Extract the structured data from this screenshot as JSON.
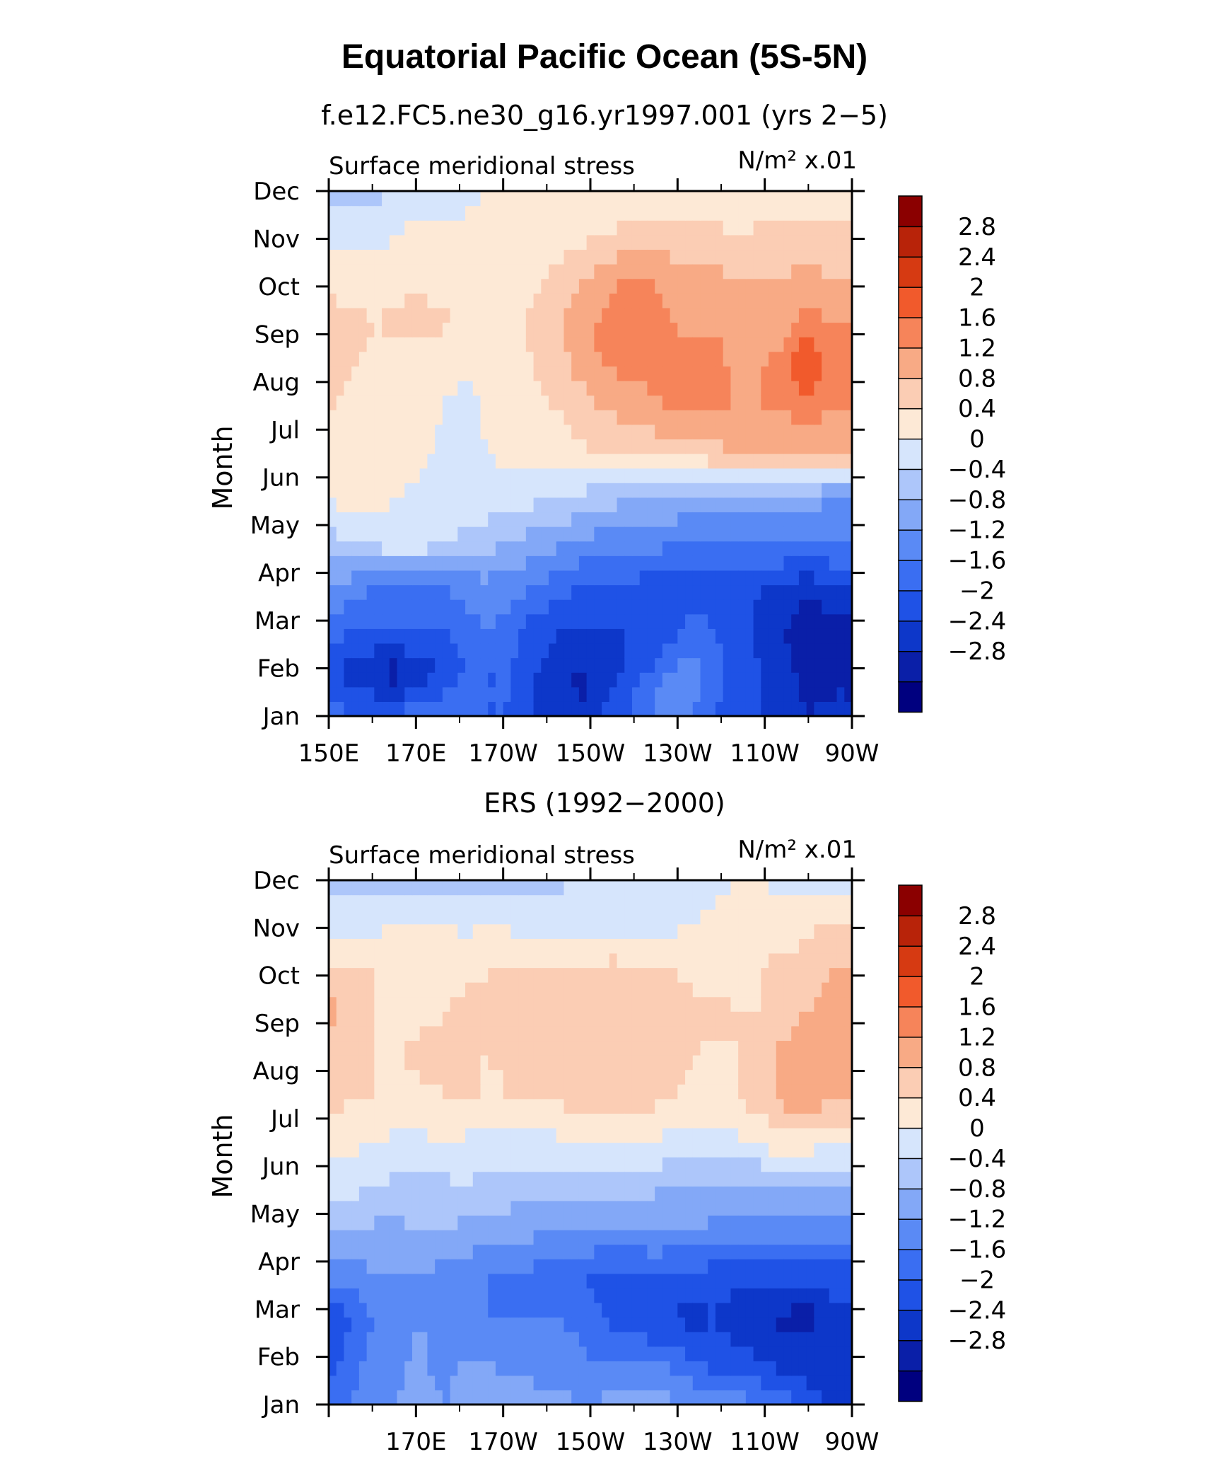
{
  "page": {
    "main_title": "Equatorial Pacific Ocean (5S-5N)"
  },
  "colors": {
    "axis": "#000000",
    "scale": [
      "#00007f",
      "#0a1fa8",
      "#0d37c9",
      "#1f52e6",
      "#3a6ef2",
      "#5a8af5",
      "#83a8f7",
      "#adc6fa",
      "#d6e5fc",
      "#fde9d6",
      "#fbcdb4",
      "#f8aa85",
      "#f6845a",
      "#f15a2c",
      "#d63a12",
      "#b82309",
      "#8b0000"
    ]
  },
  "chart_data": [
    {
      "type": "heatmap",
      "subtitle": "f.e12.FC5.ne30_g16.yr1997.001 (yrs 2−5)",
      "variable_label": "Surface meridional stress",
      "units_label": "N/m² x.01",
      "ylabel": "Month",
      "xlabel": "",
      "x_tick_labels": [
        "150E",
        "170E",
        "170W",
        "150W",
        "130W",
        "110W",
        "90W"
      ],
      "x_ticks_deg": [
        150,
        170,
        190,
        210,
        230,
        250,
        270
      ],
      "x_range_deg": [
        150,
        270
      ],
      "y_tick_labels": [
        "Jan",
        "Feb",
        "Mar",
        "Apr",
        "May",
        "Jun",
        "Jul",
        "Aug",
        "Sep",
        "Oct",
        "Nov",
        "Dec"
      ],
      "colorbar_labels": [
        "2.8",
        "2.4",
        "2",
        "1.6",
        "1.2",
        "0.8",
        "0.4",
        "0",
        "−0.4",
        "−0.8",
        "−1.2",
        "−1.6",
        "−2",
        "−2.4",
        "−2.8"
      ],
      "levels": [
        -2.8,
        -2.4,
        -2.0,
        -1.6,
        -1.2,
        -0.8,
        -0.4,
        0,
        0.4,
        0.8,
        1.2,
        1.6,
        2.0,
        2.4,
        2.8
      ],
      "grid": false,
      "legend_position": "right",
      "values": [
        [
          -1.2,
          -1.6,
          -1.6,
          -1.6,
          -1.2,
          -1.2,
          -1.2,
          -1.6,
          -1.6,
          -2.0,
          -2.0,
          -2.4,
          -2.0,
          -1.6,
          -1.2,
          -0.8,
          -1.2,
          -1.6,
          -2.0,
          -2.0,
          -2.0,
          -2.4,
          -2.2
        ],
        [
          -2.0,
          -2.2,
          -2.4,
          -2.6,
          -2.2,
          -2.0,
          -1.6,
          -1.6,
          -1.6,
          -2.0,
          -2.2,
          -2.5,
          -2.3,
          -2.0,
          -1.6,
          -1.2,
          -1.0,
          -1.4,
          -1.8,
          -2.0,
          -2.2,
          -2.6,
          -2.6
        ],
        [
          -1.4,
          -1.6,
          -1.6,
          -1.6,
          -1.6,
          -1.6,
          -1.4,
          -1.2,
          -1.4,
          -1.8,
          -2.0,
          -2.0,
          -2.0,
          -2.0,
          -2.0,
          -1.8,
          -1.4,
          -1.6,
          -1.8,
          -2.2,
          -2.4,
          -2.8,
          -2.6
        ],
        [
          -0.8,
          -1.0,
          -1.2,
          -1.2,
          -1.2,
          -1.2,
          -1.0,
          -0.9,
          -1.0,
          -1.2,
          -1.4,
          -1.6,
          -1.6,
          -1.6,
          -1.8,
          -1.8,
          -1.8,
          -1.8,
          -1.8,
          -2.0,
          -2.0,
          -2.2,
          -2.0
        ],
        [
          -0.2,
          0.2,
          0.2,
          0.3,
          0.3,
          0.1,
          -0.1,
          -0.2,
          -0.4,
          -0.6,
          -0.7,
          -0.8,
          -1.0,
          -1.0,
          -1.0,
          -1.1,
          -1.2,
          -1.2,
          -1.2,
          -1.2,
          -1.2,
          -1.2,
          -1.2
        ],
        [
          0.4,
          0.6,
          0.5,
          0.4,
          0.3,
          0.3,
          0.3,
          0.2,
          0.2,
          0.1,
          0.0,
          -0.1,
          -0.2,
          -0.3,
          -0.4,
          -0.4,
          -0.6,
          -0.6,
          -0.6,
          -0.6,
          -0.6,
          -0.6,
          -0.8
        ],
        [
          0.6,
          0.6,
          0.6,
          0.6,
          0.5,
          0.3,
          0.3,
          0.4,
          0.5,
          0.5,
          0.6,
          0.7,
          0.8,
          0.9,
          0.9,
          0.9,
          1.0,
          1.1,
          1.2,
          1.3,
          1.3,
          1.3,
          1.2
        ],
        [
          0.8,
          0.6,
          0.6,
          0.6,
          0.6,
          0.4,
          0.2,
          0.5,
          0.6,
          0.6,
          0.8,
          1.0,
          1.2,
          1.3,
          1.4,
          1.6,
          1.6,
          1.6,
          1.6,
          1.6,
          1.6,
          1.8,
          1.6
        ],
        [
          1.0,
          0.8,
          0.7,
          0.6,
          0.6,
          0.5,
          0.5,
          0.6,
          0.7,
          0.8,
          1.0,
          1.3,
          1.6,
          1.7,
          1.8,
          1.8,
          1.8,
          1.8,
          1.4,
          1.6,
          1.8,
          2.4,
          2.0
        ],
        [
          1.0,
          0.9,
          0.8,
          0.9,
          1.0,
          0.9,
          0.6,
          0.6,
          0.7,
          0.9,
          1.1,
          1.4,
          1.7,
          1.8,
          1.8,
          1.6,
          1.4,
          1.5,
          1.3,
          1.2,
          1.4,
          1.8,
          1.6
        ],
        [
          0.7,
          0.6,
          0.6,
          0.6,
          0.7,
          0.6,
          0.5,
          0.6,
          0.6,
          0.7,
          0.9,
          1.1,
          1.4,
          1.6,
          1.6,
          1.5,
          1.4,
          1.3,
          1.2,
          1.2,
          1.2,
          1.4,
          1.2
        ],
        [
          0.3,
          0.3,
          0.3,
          0.4,
          0.5,
          0.5,
          0.5,
          0.5,
          0.4,
          0.5,
          0.6,
          0.7,
          0.8,
          0.9,
          0.9,
          0.9,
          0.9,
          0.9,
          0.8,
          0.9,
          0.9,
          1.0,
          0.9
        ],
        [
          -0.1,
          -0.2,
          -0.1,
          0.1,
          0.2,
          0.2,
          0.3,
          0.4,
          0.4,
          0.4,
          0.4,
          0.5,
          0.5,
          0.5,
          0.5,
          0.5,
          0.5,
          0.5,
          0.5,
          0.5,
          0.5,
          0.6,
          0.6
        ]
      ]
    },
    {
      "type": "heatmap",
      "subtitle": "ERS (1992−2000)",
      "variable_label": "Surface meridional stress",
      "units_label": "N/m² x.01",
      "ylabel": "Month",
      "xlabel": "",
      "x_tick_labels": [
        "170E",
        "170W",
        "150W",
        "130W",
        "110W",
        "90W"
      ],
      "x_ticks_deg": [
        170,
        190,
        210,
        230,
        250,
        270
      ],
      "x_range_deg": [
        150,
        270
      ],
      "y_tick_labels": [
        "Jan",
        "Feb",
        "Mar",
        "Apr",
        "May",
        "Jun",
        "Jul",
        "Aug",
        "Sep",
        "Oct",
        "Nov",
        "Dec"
      ],
      "colorbar_labels": [
        "2.8",
        "2.4",
        "2",
        "1.6",
        "1.2",
        "0.8",
        "0.4",
        "0",
        "−0.4",
        "−0.8",
        "−1.2",
        "−1.6",
        "−2",
        "−2.4",
        "−2.8"
      ],
      "levels": [
        -2.8,
        -2.4,
        -2.0,
        -1.6,
        -1.2,
        -0.8,
        -0.4,
        0,
        0.4,
        0.8,
        1.2,
        1.6,
        2.0,
        2.4,
        2.8
      ],
      "grid": false,
      "legend_position": "right",
      "values": [
        [
          -1.4,
          -1.2,
          -1.0,
          -0.8,
          -0.6,
          -0.8,
          -0.6,
          -0.4,
          -0.5,
          -0.6,
          -0.6,
          -0.8,
          -0.7,
          -0.6,
          -0.6,
          -0.7,
          -0.8,
          -0.9,
          -1.0,
          -1.2,
          -1.4,
          -1.8,
          -2.0
        ],
        [
          -1.8,
          -1.4,
          -1.0,
          -0.9,
          -0.7,
          -1.0,
          -0.8,
          -0.8,
          -1.0,
          -1.0,
          -1.1,
          -1.1,
          -1.3,
          -1.3,
          -1.2,
          -1.3,
          -1.6,
          -1.8,
          -1.8,
          -2.0,
          -2.2,
          -2.2,
          -2.2
        ],
        [
          -2.0,
          -1.6,
          -1.2,
          -1.0,
          -0.8,
          -0.9,
          -1.0,
          -1.2,
          -1.2,
          -1.2,
          -1.2,
          -1.3,
          -1.6,
          -1.8,
          -2.0,
          -2.0,
          -2.2,
          -2.0,
          -2.4,
          -2.4,
          -2.5,
          -2.6,
          -2.2
        ],
        [
          -1.0,
          -1.0,
          -0.8,
          -0.8,
          -0.8,
          -0.9,
          -1.0,
          -1.2,
          -1.3,
          -1.3,
          -1.4,
          -1.6,
          -1.7,
          -1.7,
          -1.6,
          -1.6,
          -1.7,
          -1.8,
          -1.8,
          -1.8,
          -1.8,
          -1.8,
          -1.8
        ],
        [
          -0.4,
          -0.4,
          -0.5,
          -0.5,
          -0.4,
          -0.4,
          -0.5,
          -0.6,
          -0.6,
          -0.7,
          -0.8,
          -0.7,
          -0.8,
          -0.8,
          -0.8,
          -0.8,
          -0.8,
          -0.9,
          -1.0,
          -1.0,
          -1.0,
          -1.0,
          -1.0
        ],
        [
          0.2,
          0.1,
          0.0,
          -0.1,
          -0.2,
          -0.1,
          0.0,
          -0.1,
          -0.2,
          -0.3,
          -0.3,
          -0.2,
          -0.3,
          -0.3,
          -0.3,
          -0.4,
          -0.4,
          -0.4,
          -0.4,
          -0.5,
          -0.5,
          -0.4,
          -0.4
        ],
        [
          0.6,
          0.5,
          0.4,
          0.3,
          0.3,
          0.4,
          0.3,
          0.2,
          0.3,
          0.3,
          0.3,
          0.4,
          0.4,
          0.4,
          0.4,
          0.3,
          0.2,
          0.2,
          0.3,
          0.5,
          0.7,
          0.6,
          0.4
        ],
        [
          0.9,
          0.8,
          0.8,
          0.7,
          0.7,
          0.8,
          0.9,
          0.7,
          0.8,
          0.8,
          0.8,
          1.0,
          1.0,
          0.9,
          0.9,
          0.8,
          0.7,
          0.7,
          0.8,
          1.0,
          1.3,
          1.4,
          1.3
        ],
        [
          0.9,
          0.8,
          0.8,
          0.8,
          0.9,
          0.8,
          0.8,
          0.8,
          0.9,
          0.9,
          0.9,
          0.9,
          1.0,
          1.0,
          0.9,
          0.9,
          0.8,
          0.7,
          0.8,
          1.0,
          1.3,
          1.4,
          1.3
        ],
        [
          1.4,
          1.0,
          0.8,
          0.7,
          0.7,
          0.8,
          0.9,
          0.8,
          0.9,
          1.0,
          0.9,
          1.0,
          1.0,
          1.0,
          1.0,
          1.0,
          1.0,
          0.9,
          0.8,
          0.8,
          1.0,
          1.2,
          1.3
        ],
        [
          0.8,
          0.8,
          0.8,
          0.7,
          0.6,
          0.6,
          0.7,
          0.8,
          0.9,
          0.9,
          0.8,
          0.8,
          0.9,
          0.9,
          0.8,
          0.8,
          0.6,
          0.6,
          0.7,
          0.8,
          0.9,
          1.0,
          1.2
        ],
        [
          0.3,
          0.2,
          0.3,
          0.4,
          0.4,
          0.4,
          0.3,
          0.4,
          0.3,
          0.2,
          0.3,
          0.3,
          0.3,
          0.3,
          0.2,
          0.3,
          0.4,
          0.5,
          0.7,
          0.6,
          0.5,
          0.7,
          0.8
        ],
        [
          -0.1,
          -0.2,
          -0.2,
          -0.2,
          -0.3,
          -0.3,
          -0.2,
          -0.2,
          -0.1,
          -0.1,
          -0.1,
          0.0,
          0.1,
          0.2,
          0.3,
          0.3,
          0.3,
          0.3,
          0.4,
          0.4,
          0.3,
          0.3,
          0.2
        ]
      ]
    }
  ]
}
